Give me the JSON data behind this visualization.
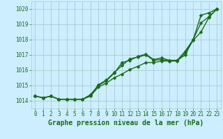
{
  "title": "Graphe pression niveau de la mer (hPa)",
  "xlim": [
    -0.5,
    23.5
  ],
  "ylim": [
    1013.5,
    1020.5
  ],
  "yticks": [
    1014,
    1015,
    1016,
    1017,
    1018,
    1019,
    1020
  ],
  "xticks": [
    0,
    1,
    2,
    3,
    4,
    5,
    6,
    7,
    8,
    9,
    10,
    11,
    12,
    13,
    14,
    15,
    16,
    17,
    18,
    19,
    20,
    21,
    22,
    23
  ],
  "bg_color": "#cceeff",
  "grid_color": "#aacccc",
  "line_color": "#1a6b1a",
  "series1": [
    1014.3,
    1014.2,
    1014.3,
    1014.1,
    1014.1,
    1014.1,
    1014.1,
    1014.4,
    1015.0,
    1015.3,
    1015.8,
    1016.5,
    1016.65,
    1016.9,
    1017.05,
    1016.7,
    1016.8,
    1016.65,
    1016.65,
    1017.25,
    1018.0,
    1019.6,
    1019.75,
    1020.0
  ],
  "series2": [
    1014.3,
    1014.2,
    1014.3,
    1014.1,
    1014.1,
    1014.1,
    1014.1,
    1014.35,
    1015.05,
    1015.35,
    1015.85,
    1016.3,
    1016.75,
    1016.85,
    1017.0,
    1016.65,
    1016.7,
    1016.6,
    1016.65,
    1017.0,
    1018.0,
    1019.1,
    1019.5,
    1020.0
  ],
  "series3": [
    1014.3,
    1014.2,
    1014.3,
    1014.1,
    1014.1,
    1014.1,
    1014.1,
    1014.3,
    1014.9,
    1015.15,
    1015.5,
    1015.75,
    1016.05,
    1016.25,
    1016.5,
    1016.5,
    1016.6,
    1016.6,
    1016.6,
    1017.15,
    1017.95,
    1018.5,
    1019.45,
    1020.0
  ],
  "markersize": 2.5,
  "linewidth": 1.0,
  "title_fontsize": 7,
  "tick_fontsize": 5.5
}
